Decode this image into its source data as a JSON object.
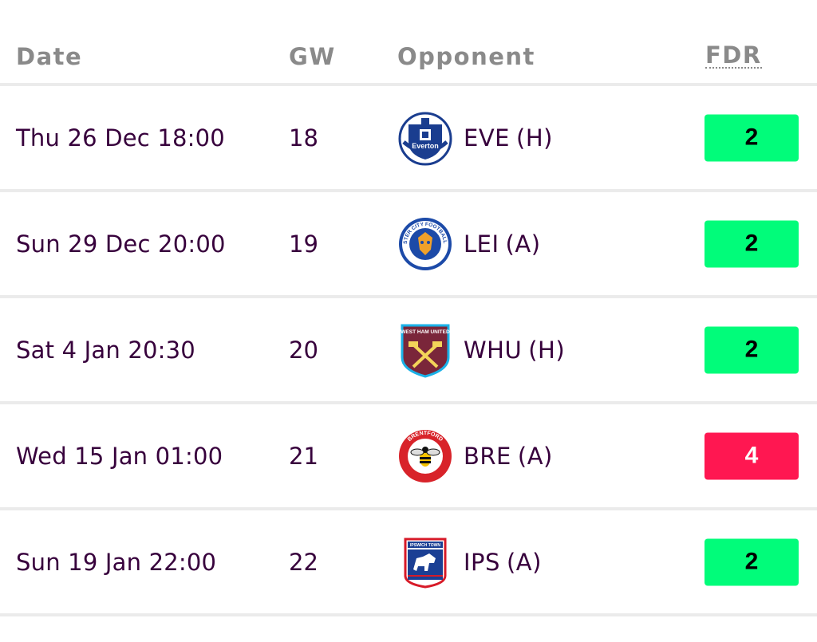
{
  "header": {
    "date": "Date",
    "gw": "GW",
    "opponent": "Opponent",
    "fdr": "FDR"
  },
  "fixtures": [
    {
      "date": "Thu 26 Dec 18:00",
      "gw": "18",
      "team": "EVE",
      "venue": "(H)",
      "crest": "everton-crest-icon",
      "crest_text": "Everton",
      "fdr": "2",
      "fdr_bg": "#01fc7a",
      "fdr_fg": "#000000"
    },
    {
      "date": "Sun 29 Dec 20:00",
      "gw": "19",
      "team": "LEI",
      "venue": "(A)",
      "crest": "leicester-city-crest-icon",
      "crest_text": "LEICESTER CITY FOOTBALL CLUB",
      "fdr": "2",
      "fdr_bg": "#01fc7a",
      "fdr_fg": "#000000"
    },
    {
      "date": "Sat 4 Jan 20:30",
      "gw": "20",
      "team": "WHU",
      "venue": "(H)",
      "crest": "west-ham-crest-icon",
      "crest_text": "WEST HAM UNITED",
      "fdr": "2",
      "fdr_bg": "#01fc7a",
      "fdr_fg": "#000000"
    },
    {
      "date": "Wed 15 Jan 01:00",
      "gw": "21",
      "team": "BRE",
      "venue": "(A)",
      "crest": "brentford-crest-icon",
      "crest_text": "BRENTFORD",
      "fdr": "4",
      "fdr_bg": "#ff1751",
      "fdr_fg": "#ffffff"
    },
    {
      "date": "Sun 19 Jan 22:00",
      "gw": "22",
      "team": "IPS",
      "venue": "(A)",
      "crest": "ipswich-town-crest-icon",
      "crest_text": "IPSWICH TOWN",
      "fdr": "2",
      "fdr_bg": "#01fc7a",
      "fdr_fg": "#000000"
    }
  ],
  "colors": {
    "text": "#37003c",
    "header_text": "#8a8a8a",
    "divider": "#ebebeb"
  }
}
